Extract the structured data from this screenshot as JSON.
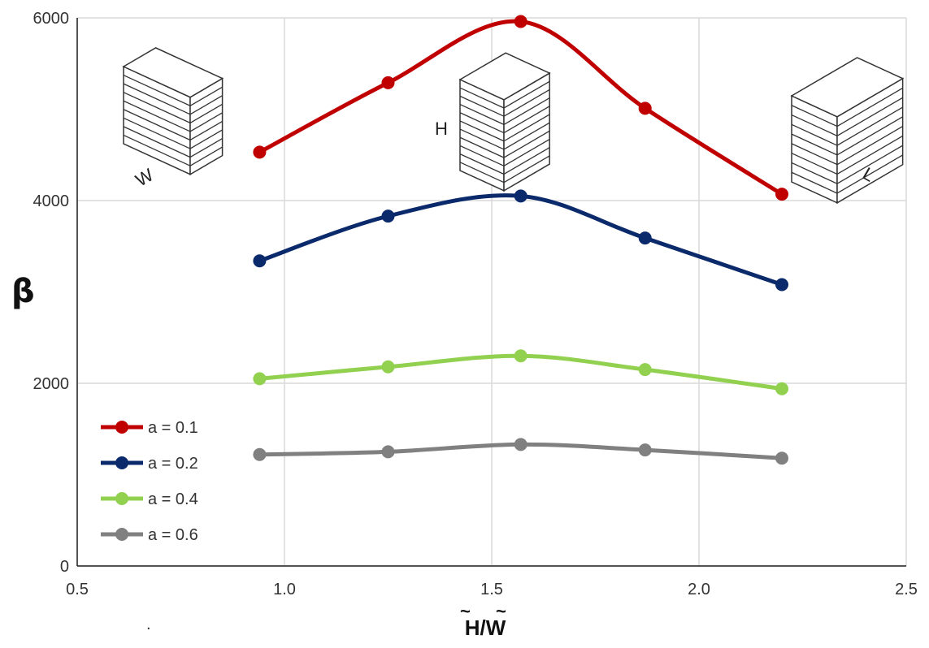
{
  "chart_data": {
    "type": "line",
    "title": "",
    "xlabel": "H/W",
    "ylabel": "β",
    "xlim": [
      0.5,
      2.5
    ],
    "ylim": [
      0,
      6000
    ],
    "xticks": [
      0.5,
      1.0,
      1.5,
      2.0,
      2.5
    ],
    "xtick_labels": [
      "0.5",
      "1.0",
      "1.5",
      "2.0",
      "2.5"
    ],
    "yticks": [
      0,
      2000,
      4000,
      6000
    ],
    "ytick_labels": [
      "0",
      "2000",
      "4000",
      "6000"
    ],
    "grid": true,
    "legend_position": "lower-left",
    "x": [
      0.94,
      1.25,
      1.57,
      1.87,
      2.2
    ],
    "series": [
      {
        "name": "a = 0.1",
        "color": "#c00000",
        "values": [
          4530,
          5290,
          5960,
          5010,
          4070
        ]
      },
      {
        "name": "a = 0.2",
        "color": "#0b2a6b",
        "values": [
          3340,
          3830,
          4050,
          3590,
          3080
        ]
      },
      {
        "name": "a = 0.4",
        "color": "#92d050",
        "values": [
          2050,
          2180,
          2300,
          2150,
          1940
        ]
      },
      {
        "name": "a = 0.6",
        "color": "#808080",
        "values": [
          1220,
          1250,
          1330,
          1270,
          1180
        ]
      }
    ],
    "annotations": {
      "left_building_label": "W",
      "middle_building_label": "H",
      "right_building_label": "L",
      "stray_mark": "."
    }
  }
}
